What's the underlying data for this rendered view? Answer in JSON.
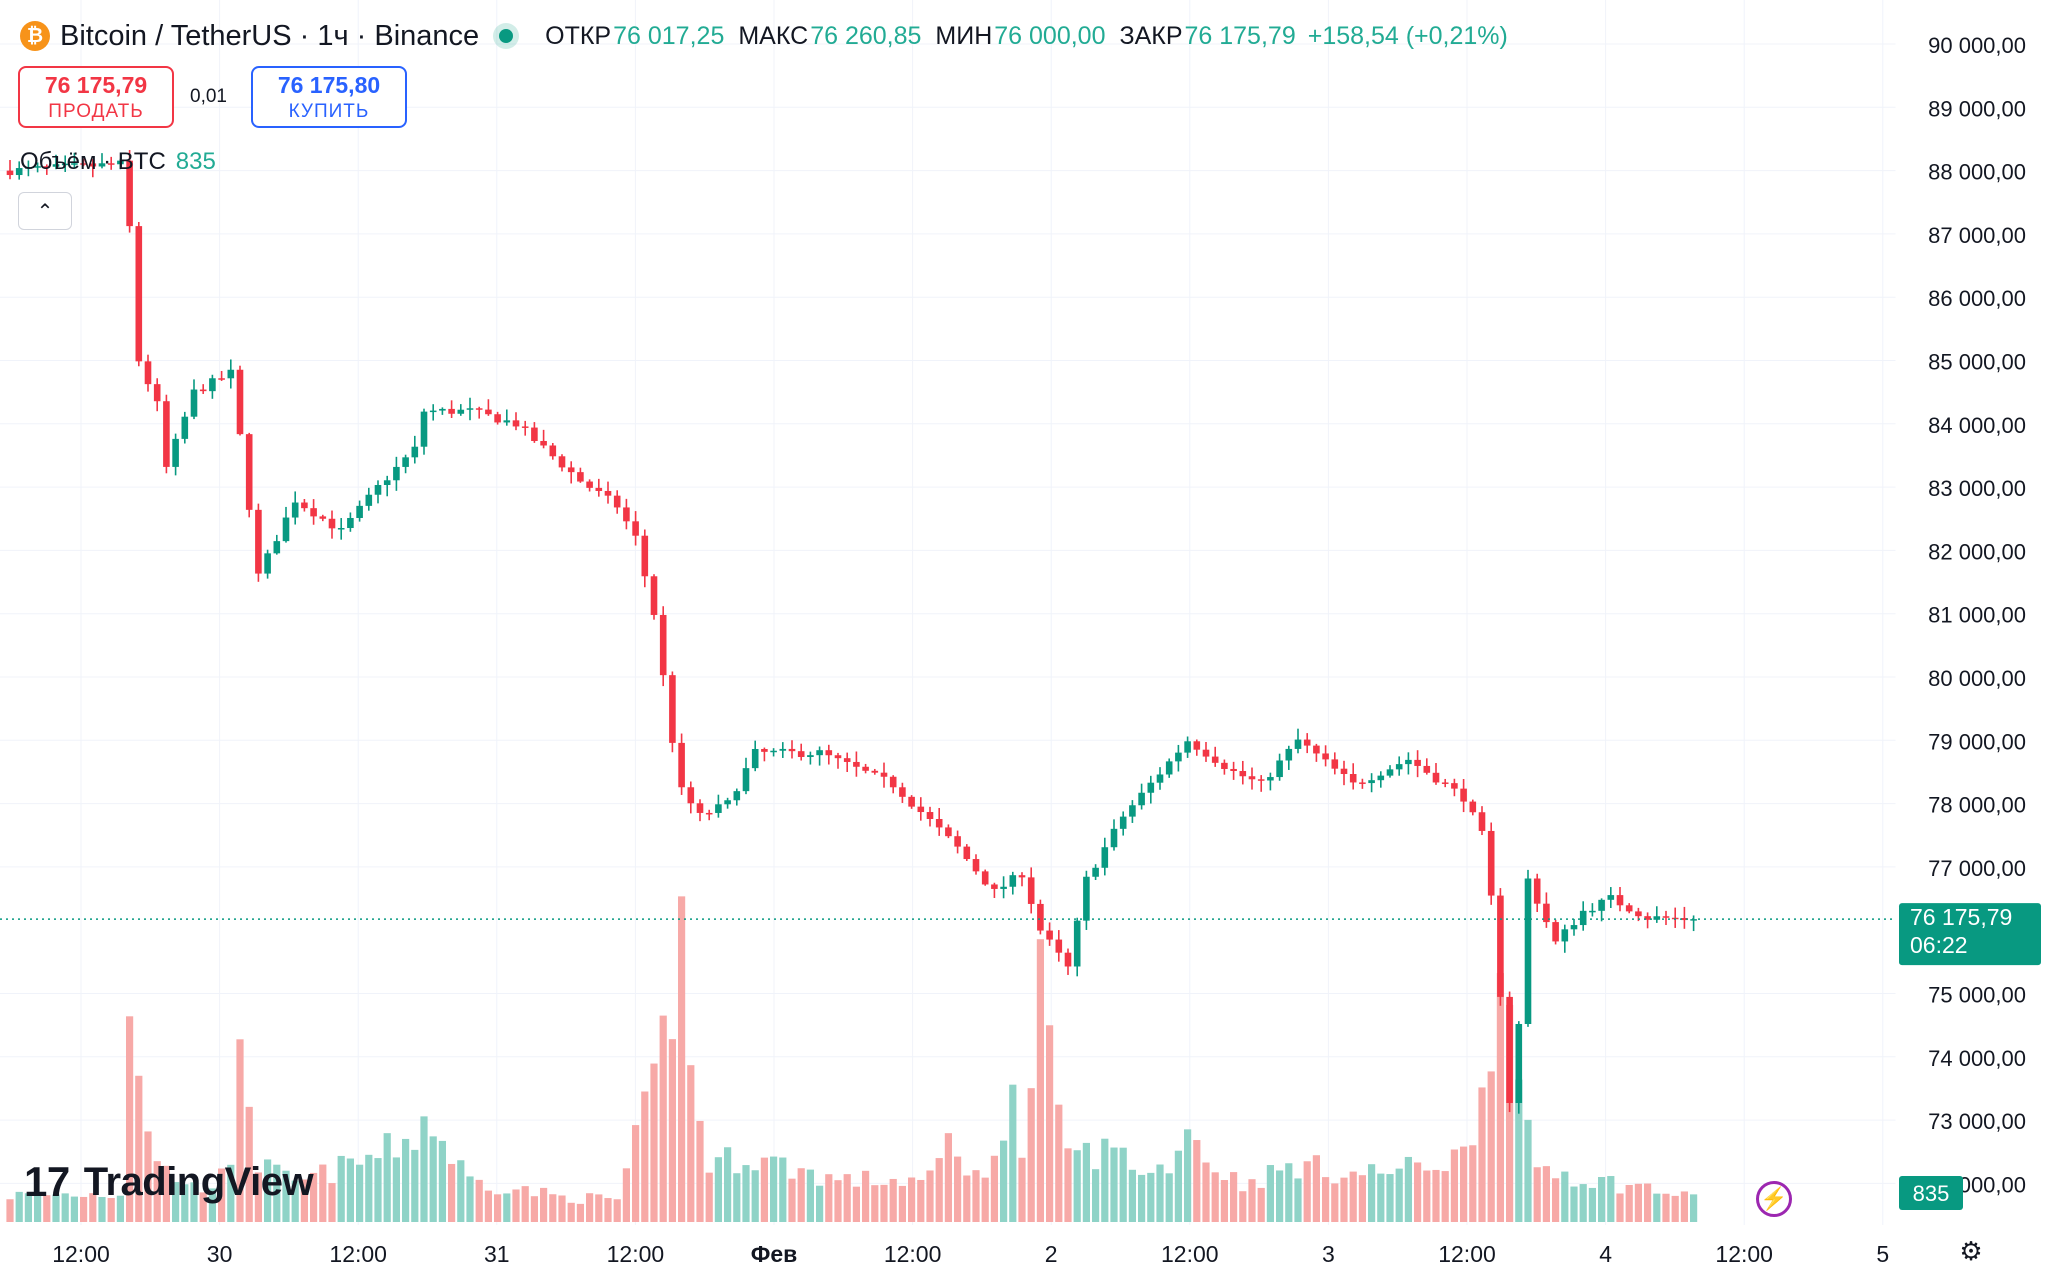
{
  "header": {
    "symbol": "Bitcoin / TetherUS · 1ч · Binance",
    "open_label": "ОТКР",
    "open": "76 017,25",
    "high_label": "МАКС",
    "high": "76 260,85",
    "low_label": "МИН",
    "low": "76 000,00",
    "close_label": "ЗАКР",
    "close": "76 175,79",
    "change": "+158,54 (+0,21%)"
  },
  "trade": {
    "sell_price": "76 175,79",
    "sell_label": "ПРОДАТЬ",
    "spread": "0,01",
    "buy_price": "76 175,80",
    "buy_label": "КУПИТЬ"
  },
  "volume_legend": {
    "label": "Объём · BTC",
    "value": "835"
  },
  "brand": "TradingView",
  "icons": {
    "symbol": "bitcoin-logo-icon",
    "collapse": "chevron-up-icon",
    "bolt": "lightning-icon",
    "settings": "gear-icon",
    "brand": "tradingview-logo-icon"
  },
  "colors": {
    "up": "#089981",
    "down": "#f23645",
    "up_volume": "#8fd3c7",
    "down_volume": "#f7a9a7",
    "grid": "#f0f3fa"
  },
  "chart_data": {
    "type": "candlestick",
    "interval": "1h",
    "y_range": [
      72000,
      90000
    ],
    "y_ticks": [
      "90 000,00",
      "89 000,00",
      "88 000,00",
      "87 000,00",
      "86 000,00",
      "85 000,00",
      "84 000,00",
      "83 000,00",
      "82 000,00",
      "81 000,00",
      "80 000,00",
      "79 000,00",
      "78 000,00",
      "77 000,00",
      "75 000,00",
      "74 000,00",
      "73 000,00",
      "72 000,00"
    ],
    "x_ticks": [
      "12:00",
      "30",
      "12:00",
      "31",
      "12:00",
      "Фев",
      "12:00",
      "2",
      "12:00",
      "3",
      "12:00",
      "4",
      "12:00",
      "5"
    ],
    "last_price": "76 175,79",
    "countdown": "06:22",
    "last_volume": "835",
    "control_points": [
      [
        0,
        88000
      ],
      [
        12,
        88100
      ],
      [
        13,
        87100
      ],
      [
        14,
        85000
      ],
      [
        16,
        84300
      ],
      [
        17,
        83300
      ],
      [
        20,
        84500
      ],
      [
        24,
        84800
      ],
      [
        25,
        83800
      ],
      [
        27,
        81600
      ],
      [
        31,
        82800
      ],
      [
        36,
        82300
      ],
      [
        40,
        83000
      ],
      [
        44,
        83600
      ],
      [
        45,
        84200
      ],
      [
        50,
        84200
      ],
      [
        55,
        84000
      ],
      [
        62,
        83100
      ],
      [
        66,
        82700
      ],
      [
        68,
        82200
      ],
      [
        70,
        81000
      ],
      [
        72,
        79000
      ],
      [
        73,
        78200
      ],
      [
        75,
        77800
      ],
      [
        78,
        78000
      ],
      [
        81,
        78800
      ],
      [
        88,
        78800
      ],
      [
        96,
        78300
      ],
      [
        103,
        77300
      ],
      [
        107,
        76600
      ],
      [
        110,
        76900
      ],
      [
        112,
        76000
      ],
      [
        115,
        75400
      ],
      [
        117,
        76800
      ],
      [
        121,
        77800
      ],
      [
        128,
        79000
      ],
      [
        133,
        78500
      ],
      [
        136,
        78300
      ],
      [
        140,
        79000
      ],
      [
        146,
        78300
      ],
      [
        152,
        78700
      ],
      [
        158,
        78100
      ],
      [
        160,
        77500
      ],
      [
        161,
        76500
      ],
      [
        162,
        75000
      ],
      [
        163,
        73300
      ],
      [
        164,
        74500
      ],
      [
        165,
        76800
      ],
      [
        168,
        75800
      ],
      [
        171,
        76300
      ],
      [
        174,
        76500
      ],
      [
        178,
        76200
      ],
      [
        183,
        76175
      ]
    ],
    "volume_control_points": [
      [
        0,
        140
      ],
      [
        12,
        150
      ],
      [
        13,
        1300
      ],
      [
        14,
        800
      ],
      [
        16,
        300
      ],
      [
        20,
        180
      ],
      [
        24,
        250
      ],
      [
        25,
        1100
      ],
      [
        26,
        700
      ],
      [
        27,
        300
      ],
      [
        31,
        200
      ],
      [
        40,
        350
      ],
      [
        44,
        450
      ],
      [
        45,
        550
      ],
      [
        50,
        220
      ],
      [
        60,
        130
      ],
      [
        66,
        120
      ],
      [
        70,
        700
      ],
      [
        72,
        1200
      ],
      [
        73,
        1550
      ],
      [
        74,
        800
      ],
      [
        76,
        300
      ],
      [
        80,
        350
      ],
      [
        90,
        220
      ],
      [
        100,
        220
      ],
      [
        102,
        420
      ],
      [
        106,
        200
      ],
      [
        109,
        750
      ],
      [
        110,
        300
      ],
      [
        112,
        1250
      ],
      [
        114,
        500
      ],
      [
        116,
        350
      ],
      [
        120,
        380
      ],
      [
        124,
        250
      ],
      [
        127,
        350
      ],
      [
        128,
        600
      ],
      [
        130,
        320
      ],
      [
        134,
        200
      ],
      [
        140,
        300
      ],
      [
        146,
        250
      ],
      [
        152,
        280
      ],
      [
        158,
        350
      ],
      [
        160,
        700
      ],
      [
        161,
        1050
      ],
      [
        162,
        1650
      ],
      [
        163,
        1050
      ],
      [
        164,
        600
      ],
      [
        166,
        300
      ],
      [
        172,
        220
      ],
      [
        178,
        180
      ],
      [
        183,
        120
      ]
    ]
  }
}
